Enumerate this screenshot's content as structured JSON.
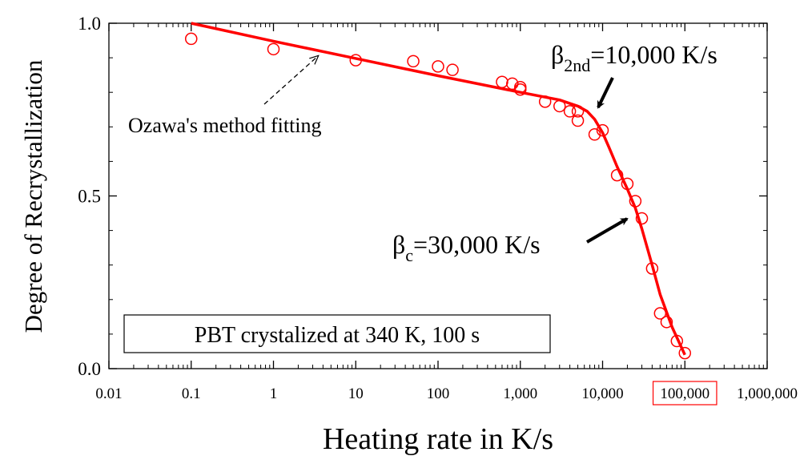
{
  "chart_data": {
    "type": "scatter",
    "xlabel": "Heating rate in K/s",
    "ylabel": "Degree of Recrystallization",
    "xscale": "log",
    "xlim": [
      0.01,
      1000000
    ],
    "ylim": [
      0.0,
      1.0
    ],
    "x_ticks": [
      0.01,
      0.1,
      1,
      10,
      100,
      1000,
      10000,
      100000,
      1000000
    ],
    "x_tick_labels": [
      "0.01",
      "0.1",
      "1",
      "10",
      "100",
      "1,000",
      "10,000",
      "100,000",
      "1,000,000"
    ],
    "y_ticks": [
      0.0,
      0.5,
      1.0
    ],
    "y_tick_labels": [
      "0.0",
      "0.5",
      "1.0"
    ],
    "highlighted_tick": "100,000",
    "grid": false,
    "marker_color": "#ff0000",
    "line_color": "#ff0000",
    "series": [
      {
        "kind": "points",
        "x": [
          0.1,
          1,
          10,
          50,
          100,
          150,
          600,
          800,
          1000,
          1000,
          2000,
          3000,
          4000,
          5000,
          5000,
          8000,
          10000,
          15000,
          20000,
          25000,
          30000,
          40000,
          50000,
          60000,
          80000,
          100000
        ],
        "y": [
          0.955,
          0.925,
          0.893,
          0.89,
          0.875,
          0.865,
          0.83,
          0.825,
          0.815,
          0.808,
          0.773,
          0.76,
          0.745,
          0.745,
          0.718,
          0.678,
          0.69,
          0.56,
          0.535,
          0.485,
          0.435,
          0.29,
          0.16,
          0.135,
          0.08,
          0.045
        ]
      },
      {
        "kind": "fit-line",
        "x": [
          0.1,
          1,
          10,
          100,
          1000,
          3000,
          5000,
          6500,
          8000,
          10000,
          12000,
          15000,
          20000,
          25000,
          30000,
          40000,
          50000,
          70000,
          100000
        ],
        "y": [
          1.0,
          0.948,
          0.898,
          0.848,
          0.8,
          0.778,
          0.76,
          0.745,
          0.722,
          0.683,
          0.64,
          0.585,
          0.52,
          0.465,
          0.405,
          0.3,
          0.215,
          0.12,
          0.04
        ]
      }
    ],
    "annotations": [
      {
        "text": "Ozawa's method fitting",
        "arrow": "dashed",
        "points_to": [
          4,
          0.905
        ]
      },
      {
        "symbol": "β",
        "subscript": "2nd",
        "rest": "=10,000 K/s",
        "arrow": "solid",
        "points_to": [
          6500,
          0.745
        ]
      },
      {
        "symbol": "β",
        "subscript": "c",
        "rest": "=30,000 K/s",
        "arrow": "solid",
        "points_to": [
          30000,
          0.44
        ]
      }
    ],
    "legend_box": "PBT crystalized at 340 K, 100 s",
    "legend_position": "bottom-left"
  }
}
